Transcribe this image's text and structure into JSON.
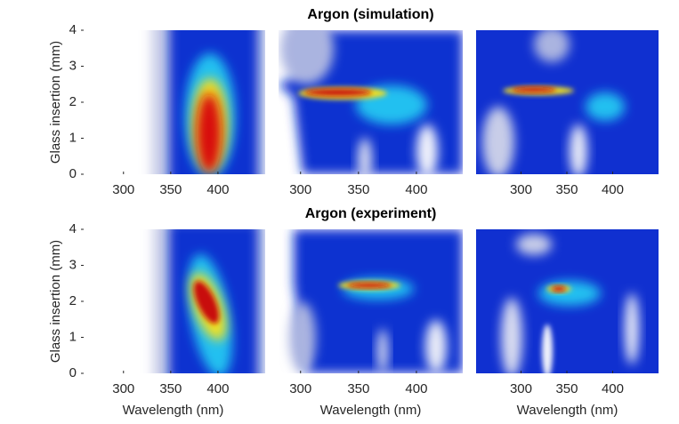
{
  "chart_data": [
    {
      "type": "heatmap",
      "xlim": [
        255,
        450
      ],
      "xticks": [
        300,
        350,
        400
      ],
      "ylim": [
        0,
        4
      ],
      "yticks": [
        0,
        1,
        2,
        3,
        4
      ],
      "ylabel": "Glass insertion (mm)"
    },
    {
      "type": "heatmap",
      "title": "Argon (simulation)",
      "xlim": [
        281,
        440
      ],
      "xticks": [
        300,
        350,
        400
      ],
      "ylim": [
        0,
        4
      ]
    },
    {
      "type": "heatmap",
      "xlim": [
        251,
        450
      ],
      "xticks": [
        300,
        350,
        400
      ],
      "ylim": [
        0,
        4
      ]
    },
    {
      "type": "heatmap",
      "xlim": [
        255,
        450
      ],
      "xticks": [
        300,
        350,
        400
      ],
      "ylim": [
        0,
        4
      ],
      "yticks": [
        0,
        1,
        2,
        3,
        4
      ],
      "ylabel": "Glass insertion (mm)",
      "xlabel": "Wavelength (nm)"
    },
    {
      "type": "heatmap",
      "title": "Argon (experiment)",
      "xlim": [
        281,
        440
      ],
      "xticks": [
        300,
        350,
        400
      ],
      "ylim": [
        0,
        4
      ],
      "xlabel": "Wavelength (nm)"
    },
    {
      "type": "heatmap",
      "xlim": [
        251,
        450
      ],
      "xticks": [
        300,
        350,
        400
      ],
      "ylim": [
        0,
        4
      ],
      "xlabel": "Wavelength (nm)"
    }
  ]
}
